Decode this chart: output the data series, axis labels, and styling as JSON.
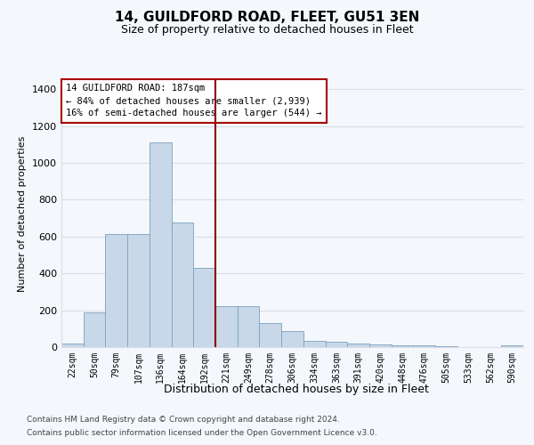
{
  "title_line1": "14, GUILDFORD ROAD, FLEET, GU51 3EN",
  "title_line2": "Size of property relative to detached houses in Fleet",
  "xlabel": "Distribution of detached houses by size in Fleet",
  "ylabel": "Number of detached properties",
  "footer_line1": "Contains HM Land Registry data © Crown copyright and database right 2024.",
  "footer_line2": "Contains public sector information licensed under the Open Government Licence v3.0.",
  "annotation_line1": "14 GUILDFORD ROAD: 187sqm",
  "annotation_line2": "← 84% of detached houses are smaller (2,939)",
  "annotation_line3": "16% of semi-detached houses are larger (544) →",
  "bar_labels": [
    "22sqm",
    "50sqm",
    "79sqm",
    "107sqm",
    "136sqm",
    "164sqm",
    "192sqm",
    "221sqm",
    "249sqm",
    "278sqm",
    "306sqm",
    "334sqm",
    "363sqm",
    "391sqm",
    "420sqm",
    "448sqm",
    "476sqm",
    "505sqm",
    "533sqm",
    "562sqm",
    "590sqm"
  ],
  "bar_values": [
    20,
    190,
    615,
    615,
    1110,
    675,
    430,
    220,
    220,
    130,
    85,
    35,
    30,
    18,
    15,
    10,
    8,
    4,
    1,
    0,
    12
  ],
  "bar_face_color": "#c8d8e8",
  "bar_edge_color": "#7ba0be",
  "vline_position": 6.5,
  "vline_color": "#8b0000",
  "ylim": [
    0,
    1450
  ],
  "yticks": [
    0,
    200,
    400,
    600,
    800,
    1000,
    1200,
    1400
  ],
  "annotation_box_edgecolor": "#aa0000",
  "plot_bg_color": "#f4f7fb",
  "outer_bg_color": "#f4f7fb",
  "grid_color": "#d8dee8",
  "title_fontsize": 11,
  "subtitle_fontsize": 9,
  "ylabel_fontsize": 8,
  "xlabel_fontsize": 9,
  "tick_fontsize": 7,
  "footer_fontsize": 6.5
}
